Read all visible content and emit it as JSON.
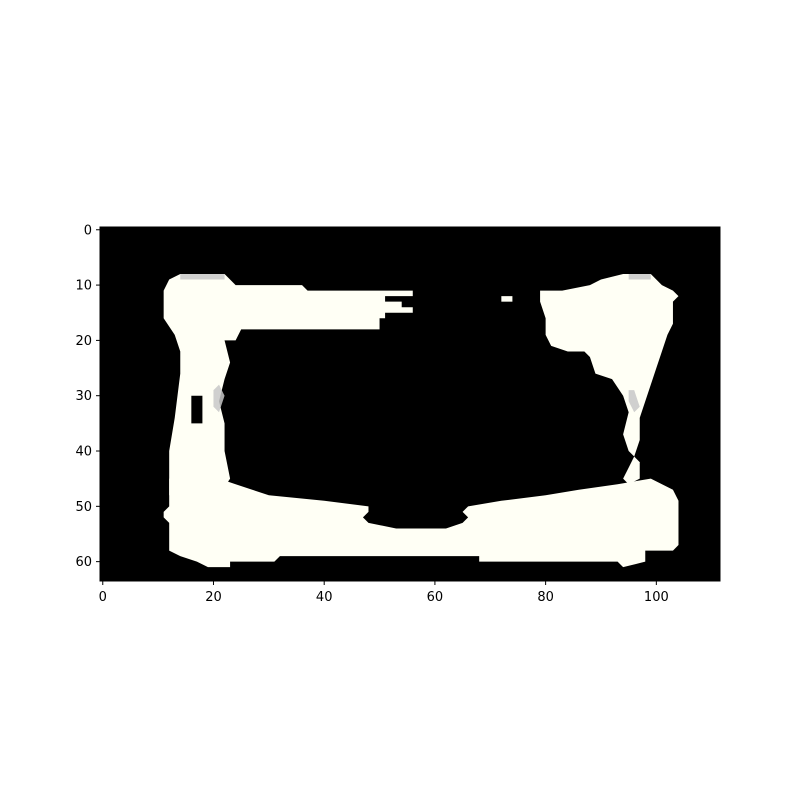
{
  "chart_data": {
    "type": "heatmap",
    "image_size": {
      "width": 112,
      "height": 64
    },
    "xlim": [
      -0.5,
      111.5
    ],
    "ylim": [
      63.5,
      -0.5
    ],
    "xticks": [
      0,
      20,
      40,
      60,
      80,
      100
    ],
    "yticks": [
      0,
      10,
      20,
      30,
      40,
      50,
      60
    ],
    "xtick_labels": [
      "0",
      "20",
      "40",
      "60",
      "80",
      "100"
    ],
    "ytick_labels": [
      "0",
      "10",
      "20",
      "30",
      "40",
      "50",
      "60"
    ],
    "background_color": "#000000",
    "fill_color": "#fffff5",
    "highlight_color": "#ffffff",
    "shadow_color": "#c8c8c8",
    "regions": [
      {
        "name": "top-left-bar",
        "polygon": [
          [
            14,
            8
          ],
          [
            22,
            8
          ],
          [
            24,
            10
          ],
          [
            36,
            10
          ],
          [
            37,
            11
          ],
          [
            56,
            11
          ],
          [
            56,
            12
          ],
          [
            51,
            12
          ],
          [
            51,
            13
          ],
          [
            54,
            13
          ],
          [
            54,
            14
          ],
          [
            56,
            14
          ],
          [
            56,
            15
          ],
          [
            51,
            15
          ],
          [
            51,
            16
          ],
          [
            50,
            16
          ],
          [
            50,
            18
          ],
          [
            25,
            18
          ],
          [
            24,
            20
          ],
          [
            22,
            20
          ],
          [
            20,
            21
          ],
          [
            15,
            21
          ],
          [
            13,
            19
          ],
          [
            11,
            16
          ],
          [
            11,
            11
          ],
          [
            12,
            9
          ]
        ]
      },
      {
        "name": "left-pillar",
        "polygon": [
          [
            13,
            19
          ],
          [
            22,
            20
          ],
          [
            23,
            24
          ],
          [
            22,
            27
          ],
          [
            21,
            31
          ],
          [
            22,
            35
          ],
          [
            22,
            40
          ],
          [
            23,
            45
          ],
          [
            21,
            48
          ],
          [
            12,
            48
          ],
          [
            12,
            40
          ],
          [
            13,
            34
          ],
          [
            14,
            26
          ],
          [
            14,
            22
          ]
        ]
      },
      {
        "name": "bottom-bar",
        "polygon": [
          [
            12,
            45
          ],
          [
            21,
            45
          ],
          [
            24,
            46
          ],
          [
            27,
            47
          ],
          [
            30,
            48
          ],
          [
            40,
            49
          ],
          [
            48,
            50
          ],
          [
            48,
            51
          ],
          [
            47,
            52
          ],
          [
            48,
            53
          ],
          [
            53,
            54
          ],
          [
            62,
            54
          ],
          [
            65,
            53
          ],
          [
            66,
            52
          ],
          [
            65,
            51
          ],
          [
            66,
            50
          ],
          [
            72,
            49
          ],
          [
            80,
            48
          ],
          [
            86,
            47
          ],
          [
            93,
            46
          ],
          [
            99,
            45
          ],
          [
            103,
            47
          ],
          [
            104,
            49
          ],
          [
            104,
            57
          ],
          [
            103,
            58
          ],
          [
            98,
            58
          ],
          [
            98,
            60
          ],
          [
            94,
            61
          ],
          [
            93,
            60
          ],
          [
            74,
            60
          ],
          [
            68,
            60
          ],
          [
            68,
            59
          ],
          [
            32,
            59
          ],
          [
            31,
            60
          ],
          [
            23,
            60
          ],
          [
            23,
            61
          ],
          [
            19,
            61
          ],
          [
            17,
            60
          ],
          [
            14,
            59
          ],
          [
            12,
            58
          ],
          [
            12,
            53
          ],
          [
            11,
            52
          ],
          [
            11,
            51
          ],
          [
            12,
            50
          ]
        ]
      },
      {
        "name": "top-right-blob",
        "polygon": [
          [
            83,
            11
          ],
          [
            88,
            10
          ],
          [
            90,
            9
          ],
          [
            94,
            8
          ],
          [
            99,
            8
          ],
          [
            101,
            10
          ],
          [
            103,
            11
          ],
          [
            104,
            12
          ],
          [
            103,
            13
          ],
          [
            103,
            17
          ],
          [
            102,
            19
          ],
          [
            101,
            22
          ],
          [
            100,
            25
          ],
          [
            99,
            28
          ],
          [
            98,
            31
          ],
          [
            97,
            34
          ],
          [
            97,
            38
          ],
          [
            96,
            41
          ],
          [
            95,
            40
          ],
          [
            94,
            37
          ],
          [
            95,
            33
          ],
          [
            94,
            30
          ],
          [
            92,
            27
          ],
          [
            89,
            26
          ],
          [
            88,
            23
          ],
          [
            87,
            22
          ],
          [
            84,
            22
          ],
          [
            81,
            21
          ],
          [
            80,
            19
          ],
          [
            80,
            16
          ],
          [
            79,
            13
          ],
          [
            79,
            11
          ]
        ]
      },
      {
        "name": "right-pillar-connector",
        "polygon": [
          [
            96,
            41
          ],
          [
            97,
            42
          ],
          [
            97,
            45
          ],
          [
            95,
            46
          ],
          [
            94,
            45
          ],
          [
            95,
            43
          ]
        ]
      },
      {
        "name": "stray-speck",
        "polygon": [
          [
            72,
            12
          ],
          [
            74,
            12
          ],
          [
            74,
            13
          ],
          [
            72,
            13
          ]
        ]
      }
    ],
    "holes": [
      {
        "name": "left-pillar-slot",
        "polygon": [
          [
            16,
            30
          ],
          [
            18,
            30
          ],
          [
            18,
            35
          ],
          [
            16,
            35
          ]
        ]
      }
    ],
    "shadows": [
      {
        "name": "top-left-cap",
        "polygon": [
          [
            14,
            8
          ],
          [
            22,
            8
          ],
          [
            22,
            9
          ],
          [
            14,
            9
          ]
        ]
      },
      {
        "name": "top-right-cap",
        "polygon": [
          [
            95,
            8
          ],
          [
            99,
            8
          ],
          [
            99,
            9
          ],
          [
            95,
            9
          ]
        ]
      },
      {
        "name": "left-inner-shade",
        "polygon": [
          [
            20,
            29
          ],
          [
            21,
            28
          ],
          [
            22,
            30
          ],
          [
            21,
            33
          ],
          [
            20,
            32
          ]
        ]
      },
      {
        "name": "right-inner-shade",
        "polygon": [
          [
            95,
            29
          ],
          [
            96,
            29
          ],
          [
            97,
            32
          ],
          [
            96,
            33
          ],
          [
            95,
            31
          ]
        ]
      }
    ]
  }
}
